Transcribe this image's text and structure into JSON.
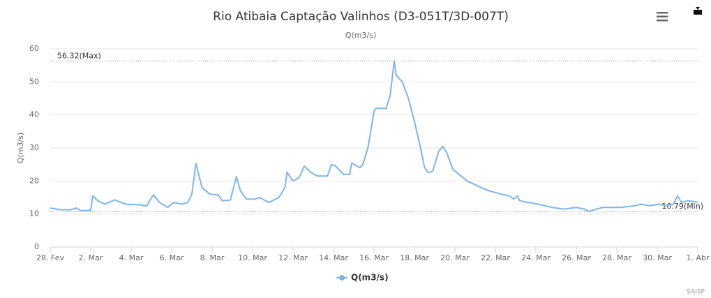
{
  "chart_data": {
    "type": "line",
    "title": "Rio Atibaia Captação Valinhos (D3-051T/3D-007T)",
    "subtitle": "Q(m3/s)",
    "y_label": "Q(m3/s)",
    "credits": "SAISP",
    "x": [
      0,
      0.5,
      1.0,
      1.3,
      1.5,
      1.8,
      2.0,
      2.1,
      2.35,
      2.7,
      3.2,
      3.7,
      4.4,
      4.75,
      5.1,
      5.4,
      5.8,
      6.1,
      6.5,
      6.8,
      7.0,
      7.2,
      7.5,
      7.9,
      8.3,
      8.5,
      8.9,
      9.2,
      9.4,
      9.7,
      10.1,
      10.35,
      10.8,
      11.3,
      11.6,
      11.7,
      12.0,
      12.3,
      12.55,
      12.9,
      13.2,
      13.7,
      13.9,
      14.1,
      14.5,
      14.8,
      14.9,
      15.3,
      15.45,
      15.7,
      16.0,
      16.1,
      16.6,
      16.8,
      17.0,
      17.1,
      17.4,
      17.7,
      18.0,
      18.3,
      18.5,
      18.7,
      18.9,
      19.2,
      19.4,
      19.6,
      19.9,
      20.3,
      20.6,
      21.3,
      21.7,
      22.3,
      22.7,
      22.9,
      23.1,
      23.2,
      24.1,
      24.8,
      25.4,
      26.0,
      26.4,
      26.6,
      27.0,
      27.3,
      28.2,
      28.9,
      29.2,
      29.6,
      30.1,
      30.4,
      30.8,
      31.0,
      31.2,
      31.5,
      31.8,
      32
    ],
    "series": [
      {
        "name": "Q(m3/s)",
        "color": "#7cb5ec",
        "values": [
          11.8,
          11.3,
          11.3,
          11.8,
          11.0,
          11.0,
          11.2,
          15.5,
          14.0,
          13.0,
          14.3,
          13.0,
          12.8,
          12.4,
          15.8,
          13.5,
          12.0,
          13.5,
          13.0,
          13.5,
          16.0,
          25.3,
          18.0,
          16.0,
          15.8,
          14.0,
          14.2,
          21.3,
          17.0,
          14.5,
          14.5,
          15.0,
          13.5,
          15.0,
          18.0,
          22.7,
          20.0,
          21.0,
          24.5,
          22.5,
          21.5,
          21.5,
          25.0,
          24.5,
          22.0,
          22.0,
          25.5,
          24.0,
          25.0,
          30.0,
          41.0,
          42.0,
          42.0,
          46.0,
          56.32,
          52.0,
          50.0,
          45.0,
          38.0,
          30.0,
          24.0,
          22.5,
          23.0,
          29.0,
          30.5,
          28.5,
          23.5,
          21.5,
          20.0,
          18.0,
          17.0,
          16.0,
          15.5,
          14.5,
          15.5,
          14.0,
          13.0,
          12.0,
          11.5,
          12.0,
          11.5,
          10.79,
          11.5,
          12.0,
          12.0,
          12.5,
          13.0,
          12.5,
          13.0,
          12.5,
          13.0,
          15.5,
          13.5,
          14.0,
          13.8,
          13.5
        ]
      }
    ],
    "xlim": [
      0,
      32
    ],
    "xticks": [
      {
        "value": 0,
        "label": "28. Fev"
      },
      {
        "value": 2,
        "label": "2. Mar"
      },
      {
        "value": 4,
        "label": "4. Mar"
      },
      {
        "value": 6,
        "label": "6. Mar"
      },
      {
        "value": 8,
        "label": "8. Mar"
      },
      {
        "value": 10,
        "label": "10. Mar"
      },
      {
        "value": 12,
        "label": "12. Mar"
      },
      {
        "value": 14,
        "label": "14. Mar"
      },
      {
        "value": 16,
        "label": "16. Mar"
      },
      {
        "value": 18,
        "label": "18. Mar"
      },
      {
        "value": 20,
        "label": "20. Mar"
      },
      {
        "value": 22,
        "label": "22. Mar"
      },
      {
        "value": 24,
        "label": "24. Mar"
      },
      {
        "value": 26,
        "label": "26. Mar"
      },
      {
        "value": 28,
        "label": "28. Mar"
      },
      {
        "value": 30,
        "label": "30. Mar"
      },
      {
        "value": 32,
        "label": "1. Abr"
      }
    ],
    "ylim": [
      0,
      60
    ],
    "yticks": [
      0,
      10,
      20,
      30,
      40,
      50,
      60
    ],
    "grid": true,
    "annotations": [
      {
        "value": 56.32,
        "label": "56.32(Max)",
        "side": "left"
      },
      {
        "value": 10.79,
        "label": "10.79(Min)",
        "side": "right"
      }
    ]
  }
}
